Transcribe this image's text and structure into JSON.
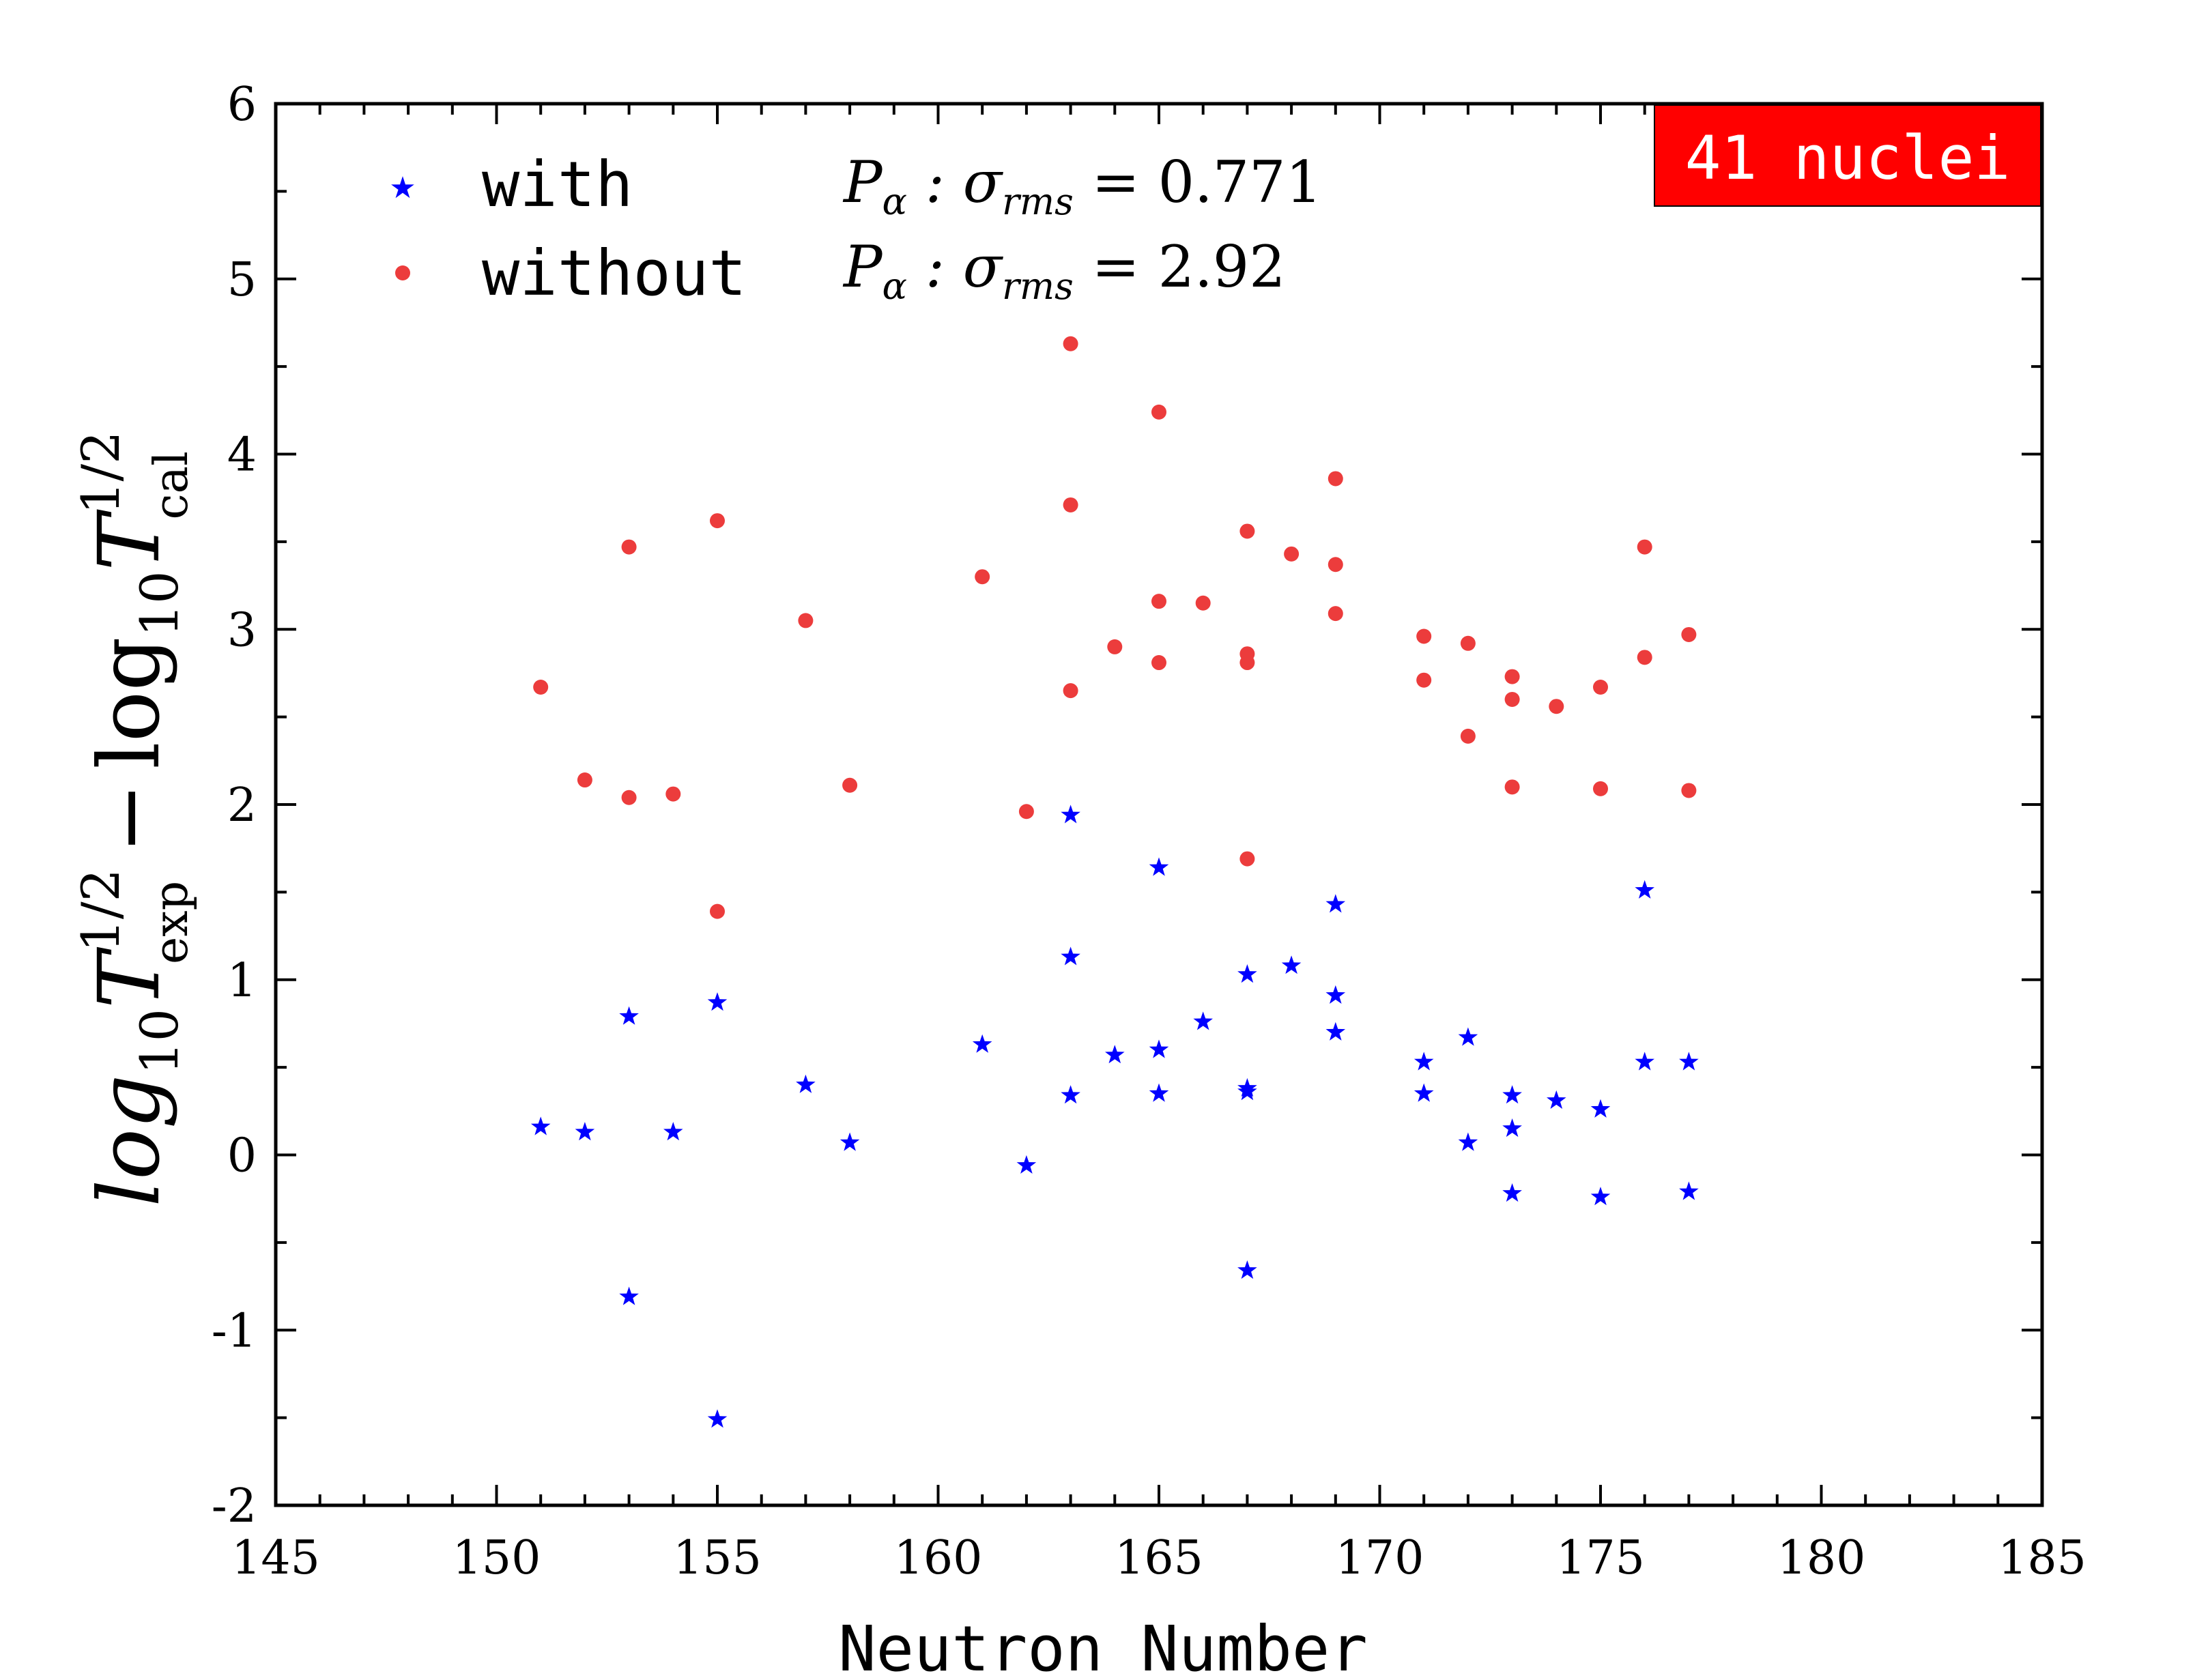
{
  "chart_data": {
    "type": "scatter",
    "xlabel": "Neutron Number",
    "ylabel": {
      "prefix": "log",
      "sub1": "10",
      "sym1": "T",
      "sup1": "1/2",
      "sub_exp": "exp",
      "minus": "−",
      "log2": "log",
      "sub2": "10",
      "sym2": "T",
      "sup2": "1/2",
      "sub_cal": "cal"
    },
    "xlim": [
      145,
      185
    ],
    "ylim": [
      -2,
      6
    ],
    "x_ticks": [
      "145",
      "150",
      "155",
      "160",
      "165",
      "170",
      "175",
      "180",
      "185"
    ],
    "y_ticks": [
      "-2",
      "-1",
      "0",
      "1",
      "2",
      "3",
      "4",
      "5",
      "6"
    ],
    "badge": "41 nuclei",
    "legend": [
      {
        "name": "with",
        "marker": "star",
        "color": "#0000ff",
        "stat_label": "P",
        "stat_sub": "α",
        "stat_mid": " : σ",
        "stat_sub2": "rms",
        "stat_eq": " = 0.771"
      },
      {
        "name": "without",
        "marker": "circle",
        "color": "#ec3c3c",
        "stat_label": "P",
        "stat_sub": "α",
        "stat_mid": " : σ",
        "stat_sub2": "rms",
        "stat_eq": " = 2.92"
      }
    ],
    "series": [
      {
        "name": "with",
        "marker": "star",
        "color": "#0000ff",
        "points": [
          [
            151,
            0.16
          ],
          [
            152,
            0.13
          ],
          [
            153,
            0.79
          ],
          [
            153,
            -0.81
          ],
          [
            154,
            0.13
          ],
          [
            155,
            0.87
          ],
          [
            155,
            -1.51
          ],
          [
            157,
            0.4
          ],
          [
            158,
            0.07
          ],
          [
            161,
            0.63
          ],
          [
            162,
            -0.06
          ],
          [
            163,
            1.94
          ],
          [
            163,
            1.13
          ],
          [
            163,
            0.34
          ],
          [
            164,
            0.57
          ],
          [
            165,
            1.64
          ],
          [
            165,
            0.6
          ],
          [
            165,
            0.35
          ],
          [
            166,
            0.76
          ],
          [
            167,
            1.03
          ],
          [
            167,
            0.38
          ],
          [
            167,
            0.36
          ],
          [
            167,
            -0.66
          ],
          [
            168,
            1.08
          ],
          [
            169,
            1.43
          ],
          [
            169,
            0.91
          ],
          [
            169,
            0.7
          ],
          [
            171,
            0.53
          ],
          [
            171,
            0.35
          ],
          [
            172,
            0.67
          ],
          [
            172,
            0.07
          ],
          [
            173,
            0.34
          ],
          [
            173,
            0.15
          ],
          [
            173,
            -0.22
          ],
          [
            174,
            0.31
          ],
          [
            175,
            0.26
          ],
          [
            175,
            -0.24
          ],
          [
            176,
            1.51
          ],
          [
            176,
            0.53
          ],
          [
            177,
            0.53
          ],
          [
            177,
            -0.21
          ]
        ]
      },
      {
        "name": "without",
        "marker": "circle",
        "color": "#ec3c3c",
        "points": [
          [
            151,
            2.67
          ],
          [
            152,
            2.14
          ],
          [
            153,
            3.47
          ],
          [
            153,
            2.04
          ],
          [
            154,
            2.06
          ],
          [
            155,
            3.62
          ],
          [
            155,
            1.39
          ],
          [
            157,
            3.05
          ],
          [
            158,
            2.11
          ],
          [
            161,
            3.3
          ],
          [
            162,
            1.96
          ],
          [
            163,
            4.63
          ],
          [
            163,
            3.71
          ],
          [
            163,
            2.65
          ],
          [
            164,
            2.9
          ],
          [
            165,
            4.24
          ],
          [
            165,
            3.16
          ],
          [
            165,
            2.81
          ],
          [
            166,
            3.15
          ],
          [
            167,
            3.56
          ],
          [
            167,
            2.86
          ],
          [
            167,
            2.81
          ],
          [
            167,
            1.69
          ],
          [
            168,
            3.43
          ],
          [
            169,
            3.86
          ],
          [
            169,
            3.37
          ],
          [
            169,
            3.09
          ],
          [
            171,
            2.96
          ],
          [
            171,
            2.71
          ],
          [
            172,
            2.92
          ],
          [
            172,
            2.39
          ],
          [
            173,
            2.73
          ],
          [
            173,
            2.6
          ],
          [
            173,
            2.1
          ],
          [
            174,
            2.56
          ],
          [
            175,
            2.67
          ],
          [
            175,
            2.09
          ],
          [
            176,
            3.47
          ],
          [
            176,
            2.84
          ],
          [
            177,
            2.97
          ],
          [
            177,
            2.08
          ]
        ]
      }
    ]
  }
}
